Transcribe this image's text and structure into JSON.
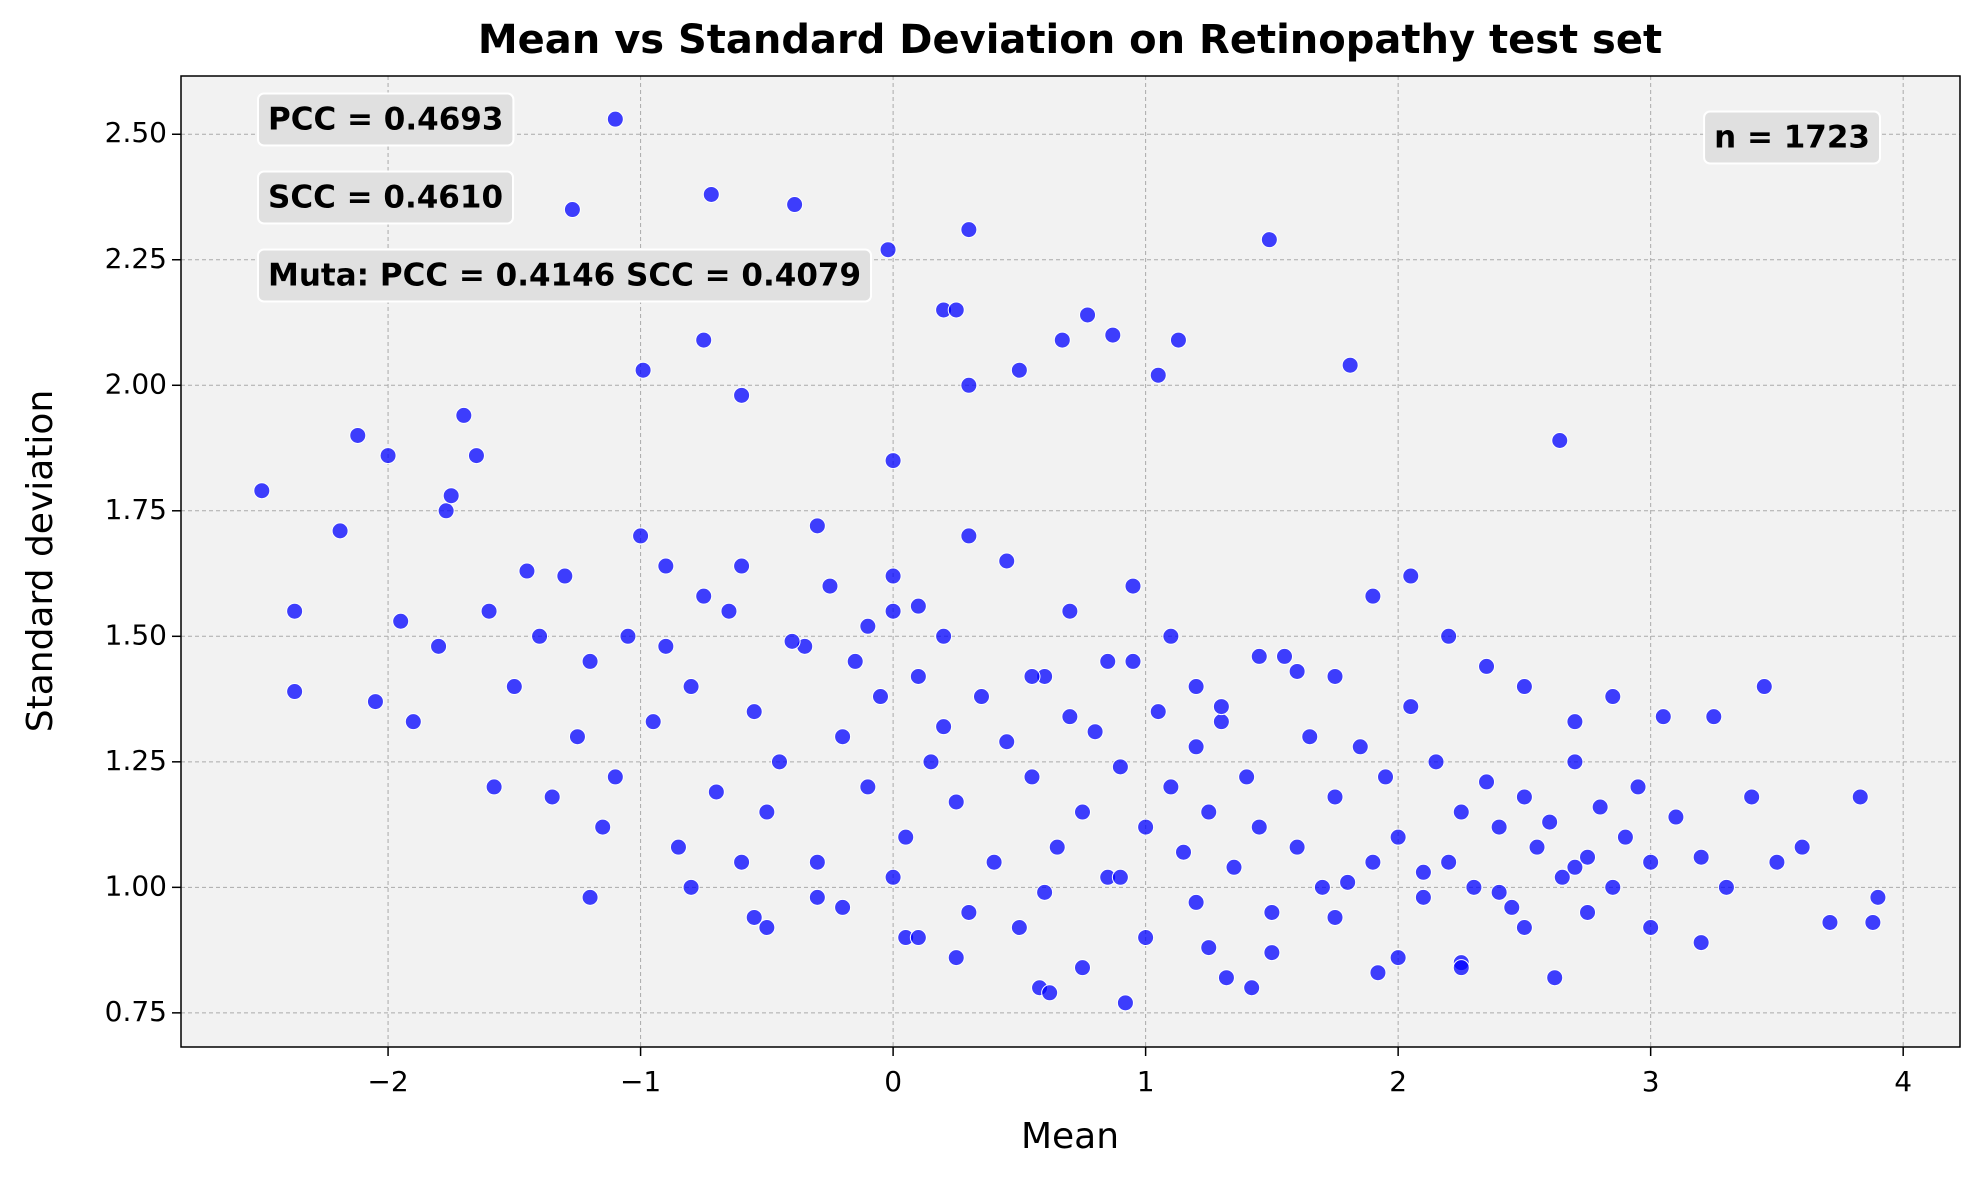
{
  "chart_data": {
    "type": "scatter",
    "title": "Mean vs Standard Deviation on Retinopathy test set",
    "x_label": "Mean",
    "y_label": "Standard deviation",
    "color": "#0000ff",
    "grid": true,
    "annotations": [
      "PCC = 0.4693",
      "SCC = 0.4610",
      "Muta: PCC = 0.4146 SCC = 0.4079",
      "n = 1723"
    ],
    "xlim": [
      -2.82,
      4.225
    ],
    "ylim": [
      0.682,
      2.616
    ],
    "xticks": [
      {
        "value": -2,
        "label": "−2"
      },
      {
        "value": -1,
        "label": "−1"
      },
      0,
      1,
      2,
      3,
      4
    ],
    "yticks": [
      {
        "value": 0.75,
        "label": "0.75"
      },
      {
        "value": 1.0,
        "label": "1.00"
      },
      {
        "value": 1.25,
        "label": "1.25"
      },
      {
        "value": 1.5,
        "label": "1.50"
      },
      {
        "value": 1.75,
        "label": "1.75"
      },
      {
        "value": 2.0,
        "label": "2.00"
      },
      {
        "value": 2.25,
        "label": "2.25"
      },
      {
        "value": 2.5,
        "label": "2.50"
      }
    ],
    "x": [
      -2.5,
      -1.1,
      -0.72,
      -0.39,
      0.3,
      1.49,
      -2.37,
      -2.37,
      2.64,
      1.81,
      0.92,
      3.9,
      3.88,
      3.71,
      3.83,
      -2.12,
      -2.19,
      -2.0,
      0.77,
      0.87,
      0.67,
      1.13,
      1.05,
      -0.75,
      0.3,
      0.5,
      -0.99,
      -0.6,
      -1.7,
      -1.65,
      -1.58,
      -1.77,
      -1.9,
      -2.05,
      -1.95,
      -1.8,
      -1.5,
      -1.45,
      -1.35,
      -1.3,
      -1.2,
      -1.15,
      -1.25,
      -1.05,
      -0.95,
      -0.9,
      -0.85,
      -0.8,
      -0.7,
      -0.65,
      -0.55,
      -0.5,
      -0.45,
      -0.35,
      -0.3,
      -0.25,
      -0.2,
      -0.15,
      -0.1,
      -0.05,
      0.0,
      0.05,
      0.1,
      0.15,
      0.2,
      0.25,
      0.35,
      0.4,
      0.45,
      0.55,
      0.6,
      0.65,
      0.7,
      0.75,
      0.8,
      0.85,
      0.9,
      0.95,
      1.0,
      1.05,
      1.1,
      1.15,
      1.2,
      1.25,
      1.3,
      1.35,
      1.4,
      1.45,
      1.55,
      1.6,
      1.65,
      1.7,
      1.75,
      1.85,
      1.9,
      1.95,
      2.0,
      2.05,
      2.1,
      2.15,
      2.2,
      2.25,
      2.3,
      2.35,
      2.4,
      2.45,
      2.5,
      2.55,
      2.6,
      2.65,
      2.7,
      2.75,
      2.8,
      2.85,
      2.9,
      2.95,
      3.0,
      3.1,
      3.2,
      3.3,
      3.4,
      3.5,
      3.6,
      -1.75,
      -1.6,
      -1.4,
      -1.1,
      -1.0,
      -0.9,
      -0.75,
      -0.6,
      -0.4,
      -0.3,
      -0.1,
      0.0,
      0.1,
      0.2,
      0.3,
      0.45,
      0.55,
      0.7,
      0.85,
      0.95,
      1.1,
      1.2,
      1.3,
      1.45,
      1.6,
      1.75,
      1.9,
      2.05,
      2.2,
      2.35,
      2.5,
      2.7,
      2.85,
      3.05,
      3.25,
      3.45,
      -1.2,
      -0.8,
      -0.5,
      -0.2,
      0.05,
      0.25,
      0.5,
      0.75,
      1.0,
      1.25,
      1.5,
      1.75,
      2.0,
      2.25,
      2.5,
      2.75,
      3.0,
      -0.6,
      -0.3,
      0.0,
      0.3,
      0.6,
      0.9,
      1.2,
      1.5,
      1.8,
      2.1,
      2.4,
      2.7,
      0.58,
      1.42,
      1.92,
      2.25,
      2.62,
      3.2,
      -0.55,
      0.1,
      0.62,
      1.32,
      0.0,
      -0.02,
      -1.27,
      0.2,
      0.25
    ],
    "values": [
      1.79,
      2.53,
      2.38,
      2.36,
      2.31,
      2.29,
      1.55,
      1.39,
      1.89,
      2.04,
      0.77,
      0.98,
      0.93,
      0.93,
      1.18,
      1.9,
      1.71,
      1.86,
      2.14,
      2.1,
      2.09,
      2.09,
      2.02,
      2.09,
      2.0,
      2.03,
      2.03,
      1.98,
      1.94,
      1.86,
      1.2,
      1.75,
      1.33,
      1.37,
      1.53,
      1.48,
      1.4,
      1.63,
      1.18,
      1.62,
      1.45,
      1.12,
      1.3,
      1.5,
      1.33,
      1.64,
      1.08,
      1.4,
      1.19,
      1.55,
      1.35,
      1.15,
      1.25,
      1.48,
      1.05,
      1.6,
      1.3,
      1.45,
      1.2,
      1.38,
      1.55,
      1.1,
      1.42,
      1.25,
      1.32,
      1.17,
      1.38,
      1.05,
      1.29,
      1.22,
      1.42,
      1.08,
      1.34,
      1.15,
      1.31,
      1.02,
      1.24,
      1.45,
      1.12,
      1.35,
      1.2,
      1.07,
      1.28,
      1.15,
      1.33,
      1.04,
      1.22,
      1.12,
      1.46,
      1.08,
      1.3,
      1.0,
      1.18,
      1.28,
      1.05,
      1.22,
      1.1,
      1.36,
      0.98,
      1.25,
      1.05,
      1.15,
      1.0,
      1.21,
      1.12,
      0.96,
      1.18,
      1.08,
      1.13,
      1.02,
      1.25,
      1.06,
      1.16,
      1.0,
      1.1,
      1.2,
      1.05,
      1.14,
      1.06,
      1.0,
      1.18,
      1.05,
      1.08,
      1.78,
      1.55,
      1.5,
      1.22,
      1.7,
      1.48,
      1.58,
      1.64,
      1.49,
      1.72,
      1.52,
      1.62,
      1.56,
      1.5,
      1.7,
      1.65,
      1.42,
      1.55,
      1.45,
      1.6,
      1.5,
      1.4,
      1.36,
      1.46,
      1.43,
      1.42,
      1.58,
      1.62,
      1.5,
      1.44,
      1.4,
      1.33,
      1.38,
      1.34,
      1.34,
      1.4,
      0.98,
      1.0,
      0.92,
      0.96,
      0.9,
      0.86,
      0.92,
      0.84,
      0.9,
      0.88,
      0.87,
      0.94,
      0.86,
      0.85,
      0.92,
      0.95,
      0.92,
      1.05,
      0.98,
      1.02,
      0.95,
      0.99,
      1.02,
      0.97,
      0.95,
      1.01,
      1.03,
      0.99,
      1.04,
      0.8,
      0.8,
      0.83,
      0.84,
      0.82,
      0.89,
      0.94,
      0.9,
      0.79,
      0.82,
      1.85,
      2.27,
      2.35,
      2.15,
      2.15
    ]
  }
}
